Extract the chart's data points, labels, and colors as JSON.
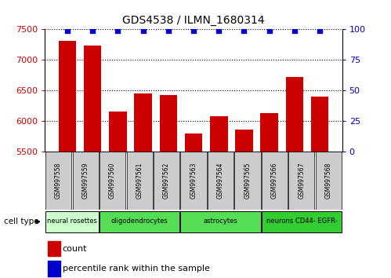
{
  "title": "GDS4538 / ILMN_1680314",
  "samples": [
    "GSM997558",
    "GSM997559",
    "GSM997560",
    "GSM997561",
    "GSM997562",
    "GSM997563",
    "GSM997564",
    "GSM997565",
    "GSM997566",
    "GSM997567",
    "GSM997568"
  ],
  "counts": [
    7310,
    7230,
    6160,
    6450,
    6420,
    5800,
    6080,
    5860,
    6130,
    6720,
    6400
  ],
  "percentile_ranks": [
    99,
    99,
    99,
    99,
    99,
    99,
    99,
    99,
    99,
    99,
    99
  ],
  "ylim_left": [
    5500,
    7500
  ],
  "ylim_right": [
    0,
    100
  ],
  "yticks_left": [
    5500,
    6000,
    6500,
    7000,
    7500
  ],
  "yticks_right": [
    0,
    25,
    50,
    75,
    100
  ],
  "bar_color": "#cc0000",
  "dot_color": "#0000cc",
  "cell_groups": [
    {
      "label": "neural rosettes",
      "start": 0,
      "end": 2,
      "color": "#ccffcc"
    },
    {
      "label": "oligodendrocytes",
      "start": 2,
      "end": 5,
      "color": "#55dd55"
    },
    {
      "label": "astrocytes",
      "start": 5,
      "end": 8,
      "color": "#55dd55"
    },
    {
      "label": "neurons CD44- EGFR-",
      "start": 8,
      "end": 11,
      "color": "#33cc33"
    }
  ],
  "legend_items": [
    {
      "label": "count",
      "color": "#cc0000"
    },
    {
      "label": "percentile rank within the sample",
      "color": "#0000cc"
    }
  ],
  "cell_type_label": "cell type",
  "tick_label_color_left": "#cc0000",
  "tick_label_color_right": "#0000cc",
  "sample_box_color": "#cccccc",
  "background_color": "#ffffff"
}
